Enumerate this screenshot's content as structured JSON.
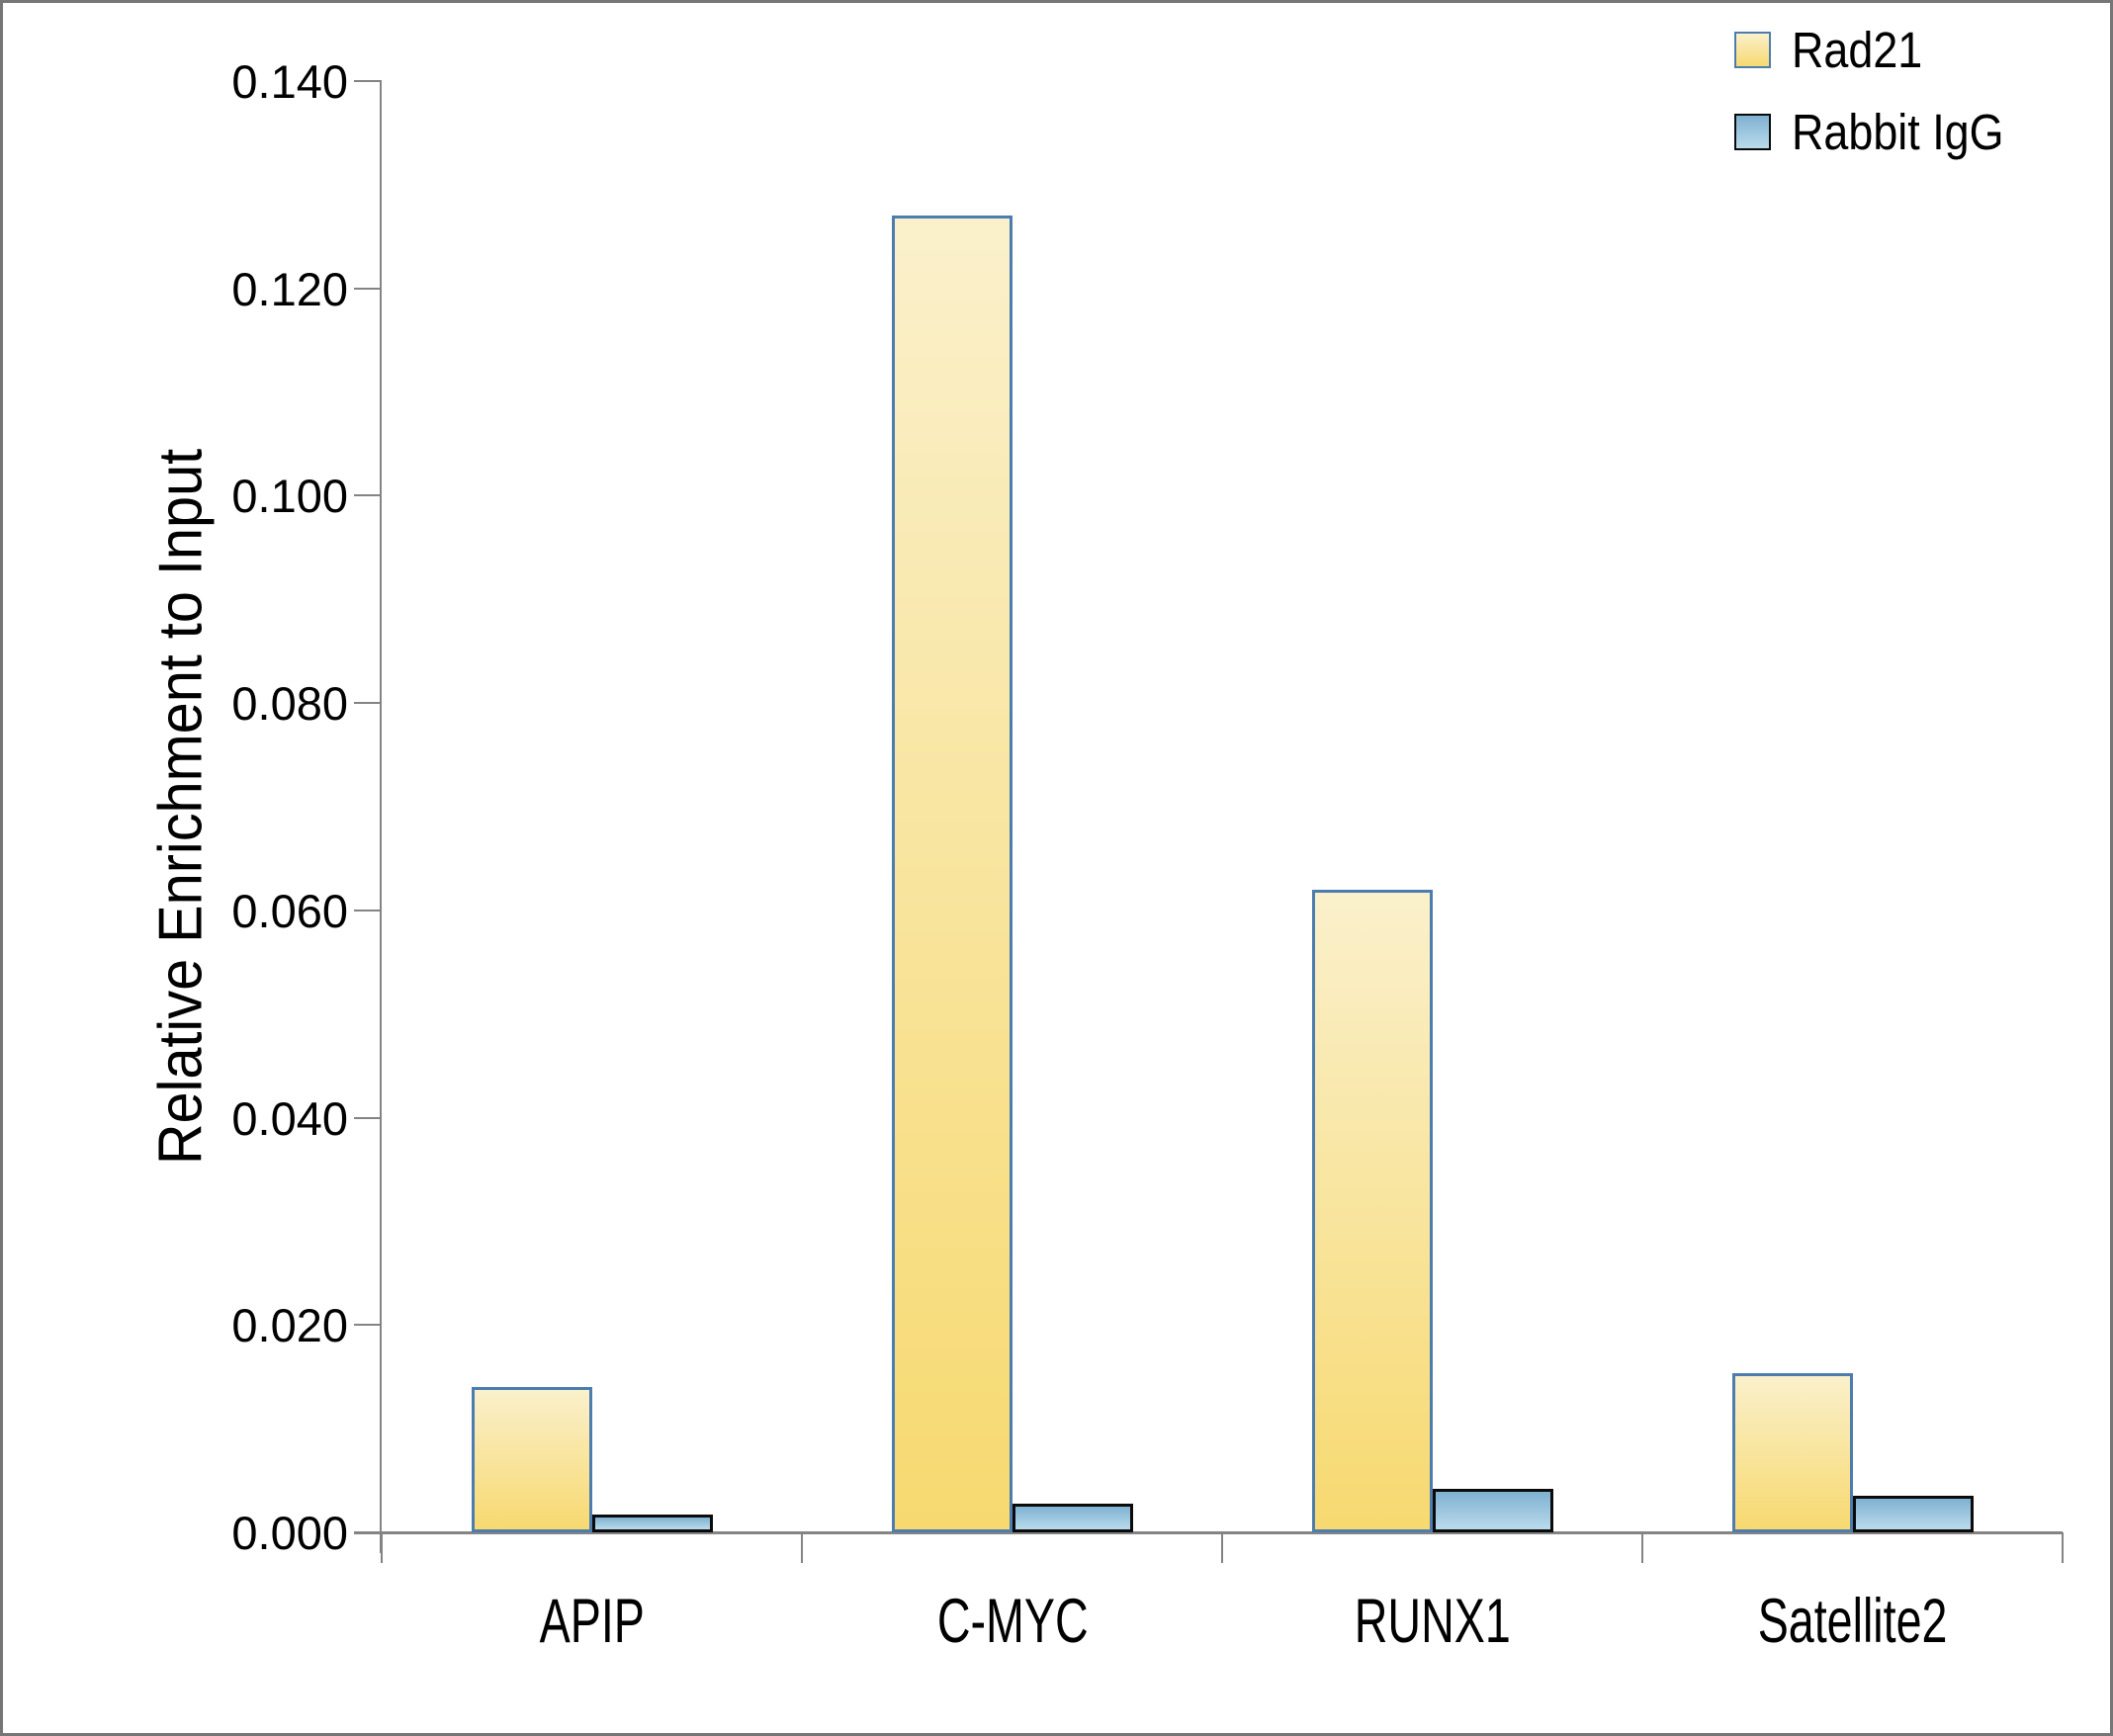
{
  "chart_data": {
    "type": "bar",
    "title": "",
    "ylabel": "Relative Enrichment to Input",
    "xlabel": "",
    "categories": [
      "APIP",
      "C-MYC",
      "RUNX1",
      "Satellite2"
    ],
    "series": [
      {
        "name": "Rad21",
        "values": [
          0.014,
          0.127,
          0.062,
          0.0154
        ],
        "fill_top": "#FAF0CB",
        "fill_bottom": "#F7D970",
        "border": "#4C7DAE"
      },
      {
        "name": "Rabbit IgG",
        "values": [
          0.0017,
          0.0028,
          0.0042,
          0.0035
        ],
        "fill_top": "#7FB1D2",
        "fill_bottom": "#BADBEB",
        "border": "#0B0B0B"
      }
    ],
    "ylim": [
      0,
      0.14
    ],
    "ytick_step": 0.02,
    "ytick_labels": [
      "0.000",
      "0.020",
      "0.040",
      "0.060",
      "0.080",
      "0.100",
      "0.120",
      "0.140"
    ],
    "grid": false,
    "legend_position": "top-right",
    "axis_color": "#848484"
  }
}
